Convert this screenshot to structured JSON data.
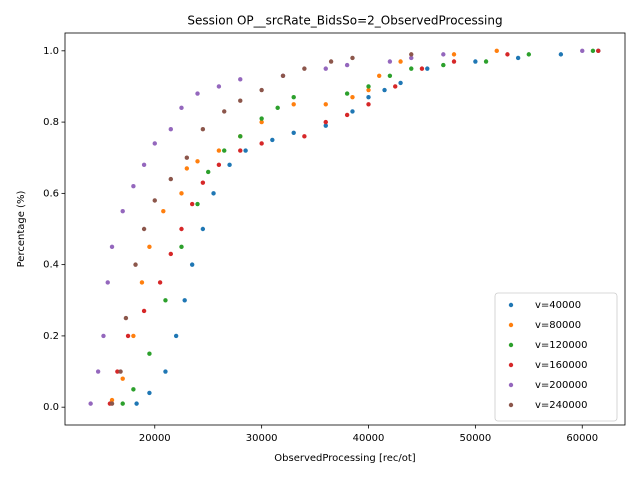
{
  "chart_data": {
    "type": "scatter",
    "title": "Session OP__srcRate_BidsSo=2_ObservedProcessing",
    "xlabel": "ObservedProcessing [rec/ot]",
    "ylabel": "Percentage (%)",
    "xlim": [
      11600,
      64000
    ],
    "ylim": [
      -0.05,
      1.05
    ],
    "xticks": [
      20000,
      30000,
      40000,
      50000,
      60000
    ],
    "yticks": [
      {
        "value": 0,
        "label": "0.0"
      },
      0.2,
      0.4,
      0.6,
      0.8,
      {
        "value": 1,
        "label": "1.0"
      }
    ],
    "legend": "lower right",
    "series": [
      {
        "name": "v=40000",
        "color": "#1f77b4",
        "x": [
          18300,
          19500,
          21000,
          22000,
          22800,
          23500,
          24500,
          25500,
          27000,
          28500,
          31000,
          33000,
          36000,
          38500,
          40000,
          41500,
          43000,
          45500,
          50000,
          54000,
          58000,
          61500
        ],
        "values": [
          0.01,
          0.04,
          0.1,
          0.2,
          0.3,
          0.4,
          0.5,
          0.6,
          0.68,
          0.72,
          0.75,
          0.77,
          0.79,
          0.83,
          0.87,
          0.89,
          0.91,
          0.95,
          0.97,
          0.98,
          0.99,
          1.0
        ]
      },
      {
        "name": "v=80000",
        "color": "#ff7f0e",
        "x": [
          16000,
          17000,
          18000,
          18800,
          19500,
          20800,
          22500,
          23000,
          24000,
          26000,
          28000,
          30000,
          33000,
          36000,
          38500,
          40000,
          41000,
          43000,
          48000,
          52000
        ],
        "values": [
          0.02,
          0.08,
          0.2,
          0.35,
          0.45,
          0.55,
          0.6,
          0.67,
          0.69,
          0.72,
          0.76,
          0.8,
          0.85,
          0.85,
          0.87,
          0.89,
          0.93,
          0.97,
          0.99,
          1.0
        ]
      },
      {
        "name": "v=120000",
        "color": "#2ca02c",
        "x": [
          17000,
          18000,
          19500,
          21000,
          22500,
          24000,
          25000,
          26500,
          28000,
          30000,
          31500,
          33000,
          38000,
          40000,
          42000,
          44000,
          47000,
          51000,
          55000,
          61000
        ],
        "values": [
          0.01,
          0.05,
          0.15,
          0.3,
          0.45,
          0.57,
          0.66,
          0.72,
          0.76,
          0.81,
          0.84,
          0.87,
          0.88,
          0.9,
          0.93,
          0.95,
          0.96,
          0.97,
          0.99,
          1.0
        ]
      },
      {
        "name": "v=160000",
        "color": "#d62728",
        "x": [
          15800,
          16500,
          17500,
          19000,
          20500,
          21500,
          22500,
          23500,
          24500,
          26000,
          28000,
          30000,
          34000,
          36000,
          38000,
          40000,
          42500,
          45000,
          48000,
          53000,
          61500
        ],
        "values": [
          0.01,
          0.1,
          0.2,
          0.27,
          0.35,
          0.43,
          0.5,
          0.57,
          0.63,
          0.68,
          0.72,
          0.74,
          0.76,
          0.8,
          0.82,
          0.85,
          0.9,
          0.95,
          0.97,
          0.99,
          1.0
        ]
      },
      {
        "name": "v=200000",
        "color": "#9467bd",
        "x": [
          14000,
          14700,
          15200,
          15600,
          16000,
          17000,
          18000,
          19000,
          20000,
          21500,
          22500,
          24000,
          26000,
          28000,
          32000,
          36000,
          38000,
          42000,
          44000,
          47000,
          60000
        ],
        "values": [
          0.01,
          0.1,
          0.2,
          0.35,
          0.45,
          0.55,
          0.62,
          0.68,
          0.74,
          0.78,
          0.84,
          0.88,
          0.9,
          0.92,
          0.93,
          0.95,
          0.96,
          0.97,
          0.98,
          0.99,
          1.0
        ]
      },
      {
        "name": "v=240000",
        "color": "#8c564b",
        "x": [
          16000,
          16800,
          17300,
          18200,
          19000,
          20000,
          21500,
          23000,
          24500,
          26500,
          28000,
          30000,
          32000,
          34000,
          36500,
          38500,
          44000
        ],
        "values": [
          0.01,
          0.1,
          0.25,
          0.4,
          0.5,
          0.58,
          0.64,
          0.7,
          0.78,
          0.83,
          0.86,
          0.89,
          0.93,
          0.95,
          0.97,
          0.98,
          0.99
        ]
      }
    ]
  }
}
